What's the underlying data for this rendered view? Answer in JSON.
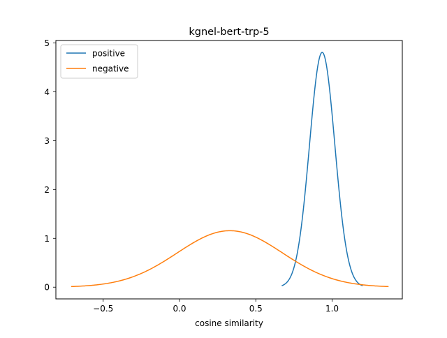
{
  "chart_data": {
    "type": "line",
    "title": "kgnel-bert-trp-5",
    "xlabel": "cosine similarity",
    "ylabel": "",
    "xlim": [
      -0.81,
      1.46
    ],
    "ylim": [
      -0.24,
      5.05
    ],
    "xticks": [
      -0.5,
      0.0,
      0.5,
      1.0
    ],
    "xtick_labels": [
      "−0.5",
      "0.0",
      "0.5",
      "1.0"
    ],
    "yticks": [
      0,
      1,
      2,
      3,
      4,
      5
    ],
    "ytick_labels": [
      "0",
      "1",
      "2",
      "3",
      "4",
      "5"
    ],
    "grid": false,
    "legend_position": "top-left",
    "series": [
      {
        "name": "positive",
        "color": "#1f77b4",
        "distribution": "normal",
        "mean": 0.935,
        "std": 0.083,
        "x_range": [
          0.67,
          1.2
        ]
      },
      {
        "name": "negative",
        "color": "#ff7f0e",
        "distribution": "normal",
        "mean": 0.33,
        "std": 0.345,
        "x_range": [
          -0.71,
          1.37
        ]
      }
    ]
  }
}
